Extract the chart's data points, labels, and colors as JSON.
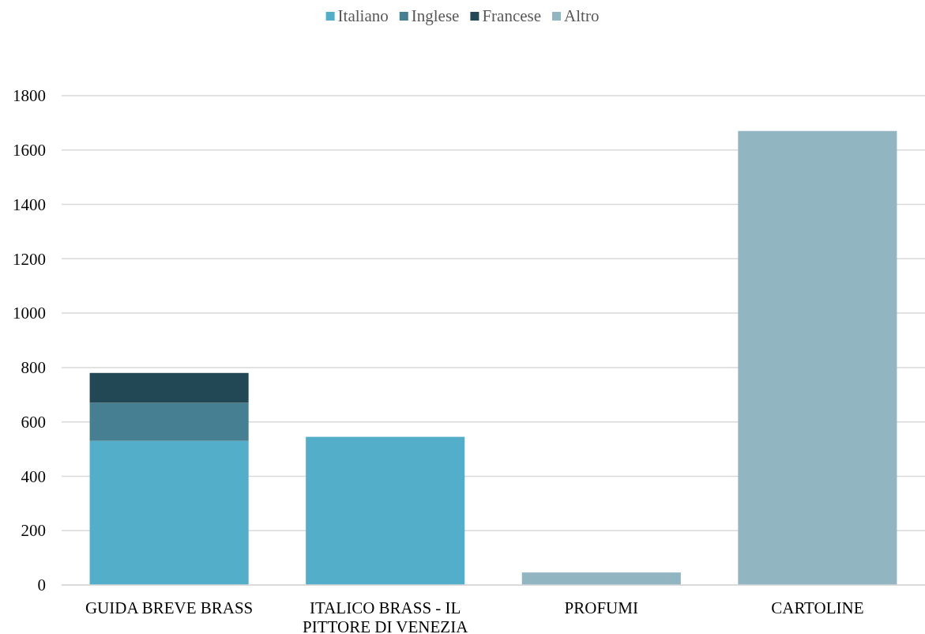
{
  "chart_data": {
    "type": "bar",
    "stacked": true,
    "categories": [
      "GUIDA BREVE BRASS",
      "ITALICO BRASS -  IL PITTORE DI VENEZIA",
      "PROFUMI",
      "CARTOLINE"
    ],
    "series": [
      {
        "name": "Italiano",
        "color": "#53aec9",
        "values": [
          530,
          545,
          null,
          null
        ]
      },
      {
        "name": "Inglese",
        "color": "#467f91",
        "values": [
          140,
          null,
          null,
          null
        ]
      },
      {
        "name": "Francese",
        "color": "#234855",
        "values": [
          110,
          null,
          null,
          null
        ]
      },
      {
        "name": "Altro",
        "color": "#91b5c1",
        "values": [
          null,
          null,
          46,
          1670
        ]
      }
    ],
    "ylim": [
      0,
      1800
    ],
    "yticks": [
      0,
      200,
      400,
      600,
      800,
      1000,
      1200,
      1400,
      1600,
      1800
    ],
    "grid": "y",
    "legend": "top"
  }
}
